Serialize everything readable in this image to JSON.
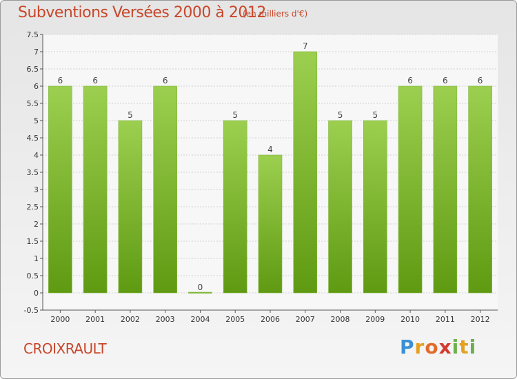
{
  "title": "Subventions Versées 2000 à 2012",
  "unit_label": "(en milliers d'€)",
  "commune": "CROIXRAULT",
  "logo_text": "Proxiti",
  "colors": {
    "bar_top": "#9ccf4f",
    "bar_bottom": "#5f9a12",
    "title": "#c8472b"
  },
  "chart_data": {
    "type": "bar",
    "categories": [
      "2000",
      "2001",
      "2002",
      "2003",
      "2004",
      "2005",
      "2006",
      "2007",
      "2008",
      "2009",
      "2010",
      "2011",
      "2012"
    ],
    "values": [
      6,
      6,
      5,
      6,
      0,
      5,
      4,
      7,
      5,
      5,
      6,
      6,
      6
    ],
    "ylim": [
      -0.5,
      7.5
    ],
    "yticks": [
      "-0.5",
      "0",
      "0.5",
      "1",
      "1.5",
      "2",
      "2.5",
      "3",
      "3.5",
      "4",
      "4.5",
      "5",
      "5.5",
      "6",
      "6.5",
      "7",
      "7.5"
    ],
    "grid": true
  }
}
